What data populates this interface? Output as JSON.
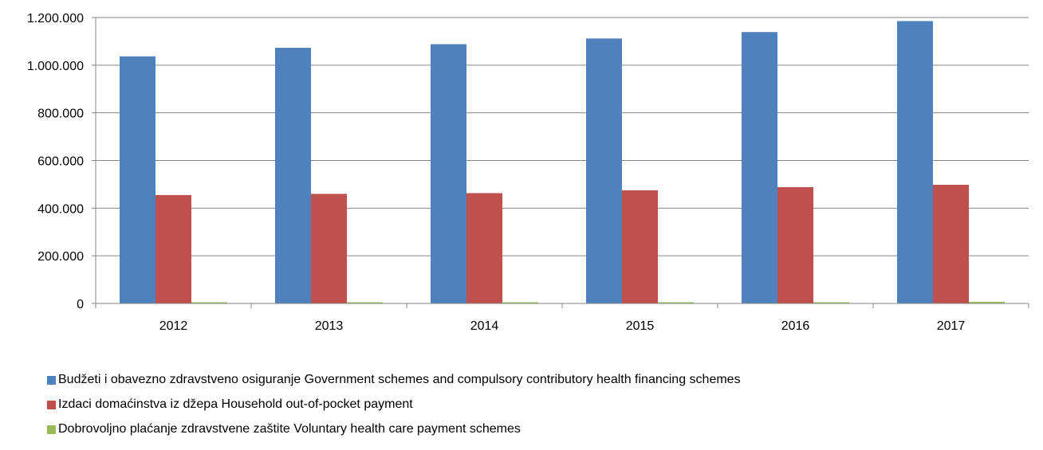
{
  "chart_data": {
    "type": "bar",
    "categories": [
      "2012",
      "2013",
      "2014",
      "2015",
      "2016",
      "2017"
    ],
    "series": [
      {
        "name": "Budžeti i obavezno zdravstveno osiguranje Government schemes and compulsory contributory health financing schemes",
        "color": "#4F81BD",
        "values": [
          1037000,
          1073000,
          1088000,
          1112000,
          1139000,
          1185000
        ]
      },
      {
        "name": "Izdaci domaćinstva iz džepa Household out-of-pocket payment",
        "color": "#C0504D",
        "values": [
          455000,
          460000,
          463000,
          475000,
          488000,
          498000
        ]
      },
      {
        "name": "Dobrovoljno plaćanje zdravstvene zaštite Voluntary health care payment schemes",
        "color": "#9BBB59",
        "values": [
          5000,
          5000,
          5000,
          5000,
          5000,
          7000
        ]
      }
    ],
    "y_ticks": [
      "0",
      "200.000",
      "400.000",
      "600.000",
      "800.000",
      "1.000.000",
      "1.200.000"
    ],
    "ylim": [
      0,
      1200000
    ],
    "grid": true,
    "legend_position": "bottom",
    "gridline_color": "#868686",
    "axis_color": "#868686"
  }
}
